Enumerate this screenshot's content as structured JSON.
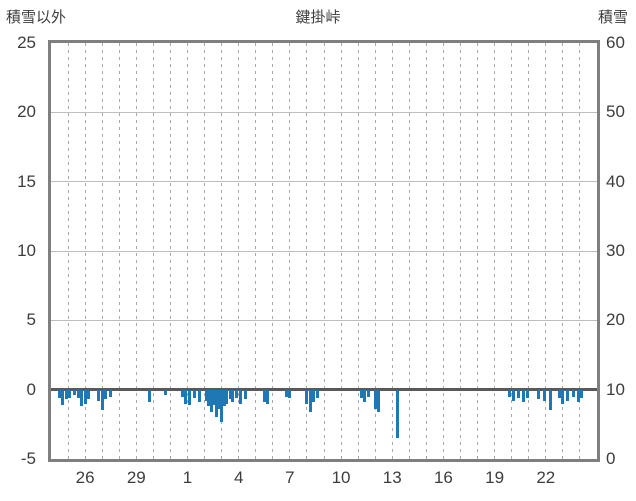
{
  "chart_data": {
    "type": "bar",
    "title": "鍵掛峠",
    "left_axis": {
      "label": "積雪以外",
      "min": -5,
      "max": 25,
      "ticks": [
        25,
        20,
        15,
        10,
        5,
        0,
        -5
      ]
    },
    "right_axis": {
      "label": "積雪",
      "min": 0,
      "max": 60,
      "ticks": [
        60,
        50,
        40,
        30,
        20,
        10,
        0
      ]
    },
    "x_axis": {
      "tick_labels": [
        "26",
        "29",
        "1",
        "4",
        "7",
        "10",
        "13",
        "16",
        "19",
        "22"
      ],
      "tick_day_indices": [
        2,
        5,
        8,
        11,
        14,
        17,
        20,
        23,
        26,
        29
      ],
      "day_slots": 32,
      "gridline_style": "dashed-per-day"
    },
    "grid": true,
    "legend": "none",
    "colors": {
      "bar": "#1f77b4",
      "hgrid": "#bdbdbd",
      "vgrid": "#a9a9a9",
      "zero_line": "#595959",
      "border": "#7f7f7f",
      "text": "#3d3d3d",
      "background": "#ffffff"
    },
    "series": [
      {
        "name": "積雪以外",
        "axis": "left",
        "color": "#1f77b4",
        "points": [
          {
            "x": 0.5,
            "v": -0.6
          },
          {
            "x": 0.7,
            "v": -1.1
          },
          {
            "x": 0.9,
            "v": -0.7
          },
          {
            "x": 1.1,
            "v": -0.6
          },
          {
            "x": 1.35,
            "v": -0.4
          },
          {
            "x": 1.6,
            "v": -0.6
          },
          {
            "x": 1.8,
            "v": -1.2
          },
          {
            "x": 2.0,
            "v": -1.0
          },
          {
            "x": 2.2,
            "v": -0.7
          },
          {
            "x": 2.8,
            "v": -0.8
          },
          {
            "x": 3.0,
            "v": -1.5
          },
          {
            "x": 3.2,
            "v": -0.7
          },
          {
            "x": 3.5,
            "v": -0.5
          },
          {
            "x": 5.8,
            "v": -0.9
          },
          {
            "x": 6.7,
            "v": -0.4
          },
          {
            "x": 7.7,
            "v": -0.5
          },
          {
            "x": 7.9,
            "v": -1.0
          },
          {
            "x": 8.1,
            "v": -1.1
          },
          {
            "x": 8.4,
            "v": -0.6
          },
          {
            "x": 8.7,
            "v": -0.9
          },
          {
            "x": 9.1,
            "v": -0.8
          },
          {
            "x": 9.25,
            "v": -1.2
          },
          {
            "x": 9.4,
            "v": -1.6
          },
          {
            "x": 9.55,
            "v": -1.1
          },
          {
            "x": 9.7,
            "v": -2.0
          },
          {
            "x": 9.85,
            "v": -1.4
          },
          {
            "x": 10.0,
            "v": -2.3
          },
          {
            "x": 10.15,
            "v": -1.2
          },
          {
            "x": 10.3,
            "v": -1.0
          },
          {
            "x": 10.5,
            "v": -0.7
          },
          {
            "x": 10.65,
            "v": -0.9
          },
          {
            "x": 10.9,
            "v": -0.6
          },
          {
            "x": 11.1,
            "v": -1.0
          },
          {
            "x": 11.4,
            "v": -0.7
          },
          {
            "x": 12.5,
            "v": -0.9
          },
          {
            "x": 12.7,
            "v": -1.0
          },
          {
            "x": 13.8,
            "v": -0.5
          },
          {
            "x": 14.0,
            "v": -0.6
          },
          {
            "x": 15.0,
            "v": -1.0
          },
          {
            "x": 15.2,
            "v": -1.6
          },
          {
            "x": 15.4,
            "v": -0.9
          },
          {
            "x": 15.6,
            "v": -0.6
          },
          {
            "x": 18.2,
            "v": -0.6
          },
          {
            "x": 18.4,
            "v": -0.9
          },
          {
            "x": 18.6,
            "v": -0.5
          },
          {
            "x": 19.0,
            "v": -1.4
          },
          {
            "x": 19.2,
            "v": -1.6
          },
          {
            "x": 20.3,
            "v": -3.5
          },
          {
            "x": 26.9,
            "v": -0.5
          },
          {
            "x": 27.1,
            "v": -0.8
          },
          {
            "x": 27.4,
            "v": -0.6
          },
          {
            "x": 27.7,
            "v": -0.9
          },
          {
            "x": 27.9,
            "v": -0.6
          },
          {
            "x": 28.6,
            "v": -0.7
          },
          {
            "x": 28.9,
            "v": -0.8
          },
          {
            "x": 29.3,
            "v": -1.5
          },
          {
            "x": 29.8,
            "v": -0.6
          },
          {
            "x": 30.0,
            "v": -1.0
          },
          {
            "x": 30.3,
            "v": -0.8
          },
          {
            "x": 30.6,
            "v": -0.5
          },
          {
            "x": 30.9,
            "v": -0.9
          },
          {
            "x": 31.1,
            "v": -0.6
          }
        ]
      },
      {
        "name": "積雪",
        "axis": "right",
        "points": []
      }
    ]
  }
}
